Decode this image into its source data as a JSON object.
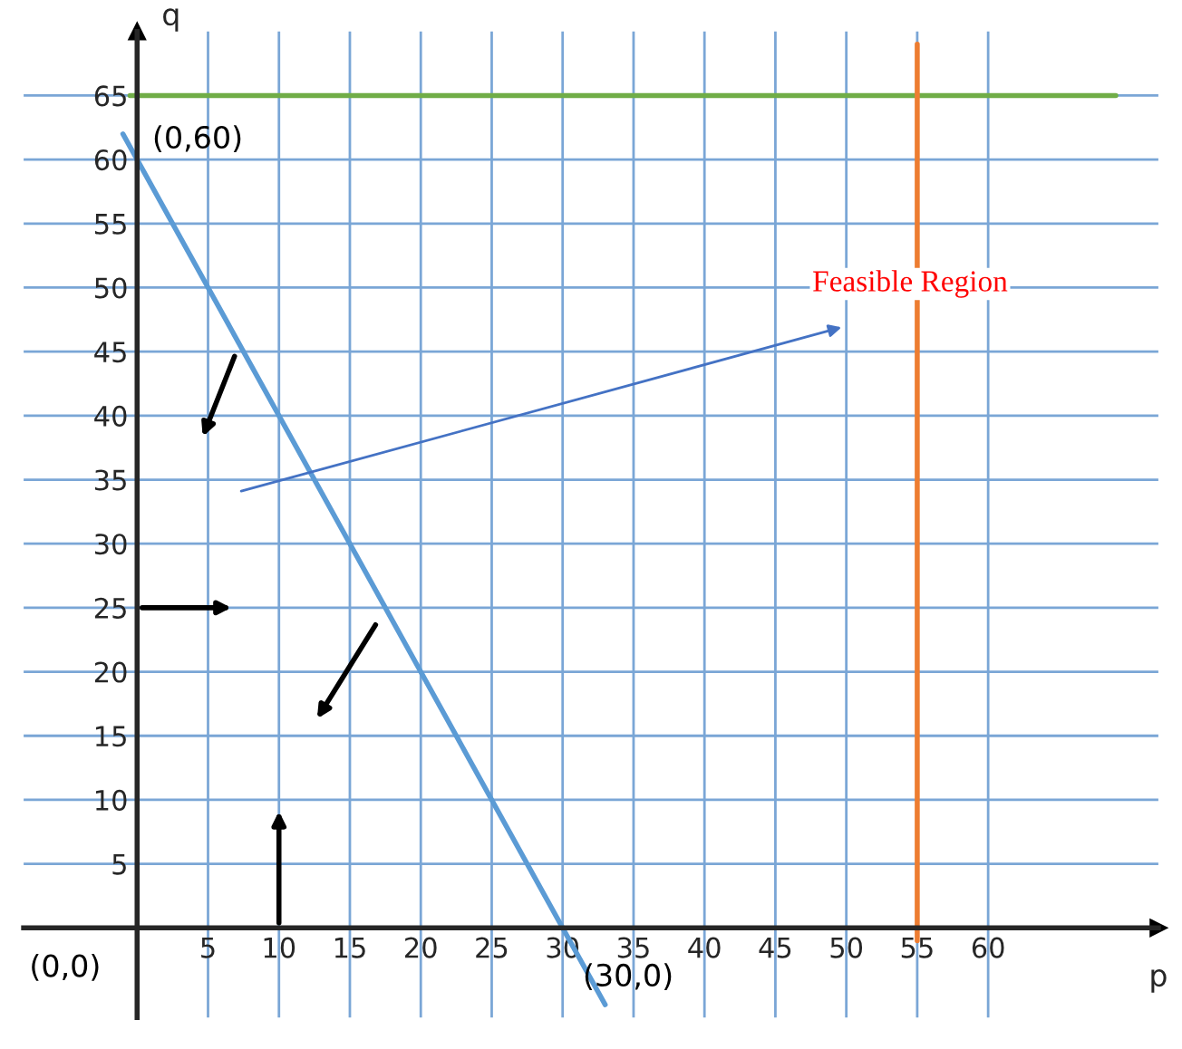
{
  "chart_data": {
    "type": "line",
    "xlabel": "p",
    "ylabel": "q",
    "xlim": [
      -8,
      72
    ],
    "ylim": [
      -7,
      70
    ],
    "xticks": [
      5,
      10,
      15,
      20,
      25,
      30,
      35,
      40,
      45,
      50,
      55,
      60
    ],
    "yticks": [
      5,
      10,
      15,
      20,
      25,
      30,
      35,
      40,
      45,
      50,
      55,
      60,
      65
    ],
    "grid": true,
    "legend": false,
    "marker": "none",
    "line_style": "solid",
    "series": [
      {
        "color": "#5b9bd5",
        "x": [
          -1,
          33
        ],
        "values": [
          62,
          -6
        ]
      },
      {
        "color": "#70ad47",
        "x": [
          -0.5,
          69
        ],
        "values": [
          65,
          65
        ]
      },
      {
        "color": "#ed7d31",
        "x": [
          55,
          55
        ],
        "values": [
          -1,
          69
        ]
      }
    ],
    "annotations": [
      {
        "text": "(0,60)",
        "x": 0,
        "y": 60
      },
      {
        "text": "(30,0)",
        "x": 30,
        "y": 0
      },
      "(0,0)",
      "Feasible Region"
    ]
  }
}
